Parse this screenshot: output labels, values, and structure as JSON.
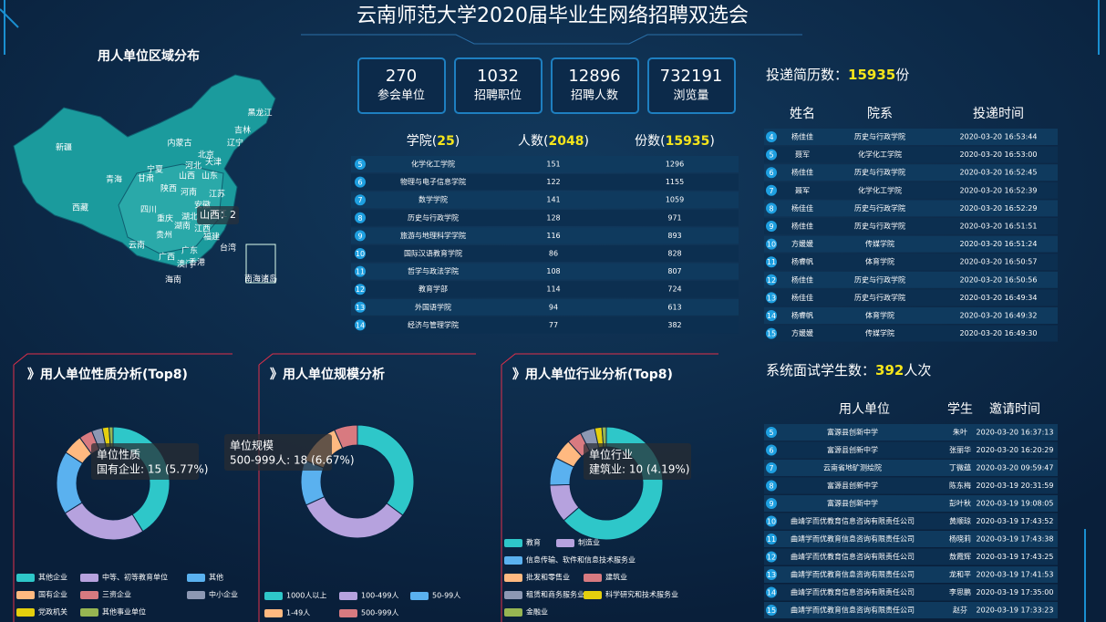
{
  "header": {
    "title": "云南师范大学2020届毕业生网络招聘双选会"
  },
  "map": {
    "title": "用人单位区域分布",
    "labels": [
      "黑龙江",
      "吉林",
      "辽宁",
      "内蒙古",
      "北京",
      "天津",
      "河北",
      "山西",
      "山东",
      "宁夏",
      "甘肃",
      "新疆",
      "青海",
      "西藏",
      "陕西",
      "河南",
      "江苏",
      "安徽",
      "湖北",
      "四川",
      "重庆",
      "湖南",
      "江西",
      "浙江",
      "贵州",
      "福建",
      "云南",
      "广西",
      "广东",
      "台湾",
      "澳门",
      "香港",
      "海南",
      "南海诸岛"
    ],
    "tooltip": "山西：2"
  },
  "stats": [
    {
      "value": "270",
      "label": "参会单位"
    },
    {
      "value": "1032",
      "label": "招聘职位"
    },
    {
      "value": "12896",
      "label": "招聘人数"
    },
    {
      "value": "732191",
      "label": "浏览量"
    }
  ],
  "college_table": {
    "headers": [
      [
        "学院(",
        "25",
        ")"
      ],
      [
        "人数(",
        "2048",
        ")"
      ],
      [
        "份数(",
        "15935",
        ")"
      ]
    ],
    "rows": [
      [
        "5",
        "化学化工学院",
        "151",
        "1296"
      ],
      [
        "6",
        "物理与电子信息学院",
        "122",
        "1155"
      ],
      [
        "7",
        "数学学院",
        "141",
        "1059"
      ],
      [
        "8",
        "历史与行政学院",
        "128",
        "971"
      ],
      [
        "9",
        "旅游与地理科学学院",
        "116",
        "893"
      ],
      [
        "10",
        "国际汉语教育学院",
        "86",
        "828"
      ],
      [
        "11",
        "哲学与政法学院",
        "108",
        "807"
      ],
      [
        "12",
        "教育学部",
        "114",
        "724"
      ],
      [
        "13",
        "外国语学院",
        "94",
        "613"
      ],
      [
        "14",
        "经济与管理学院",
        "77",
        "382"
      ]
    ]
  },
  "resume": {
    "summary": [
      "投递简历数：",
      "15935",
      "份"
    ],
    "headers": [
      "姓名",
      "院系",
      "投递时间"
    ],
    "rows": [
      [
        "4",
        "杨佳佳",
        "历史与行政学院",
        "2020-03-20 16:53:44"
      ],
      [
        "5",
        "聂军",
        "化学化工学院",
        "2020-03-20 16:53:00"
      ],
      [
        "6",
        "杨佳佳",
        "历史与行政学院",
        "2020-03-20 16:52:45"
      ],
      [
        "7",
        "聂军",
        "化学化工学院",
        "2020-03-20 16:52:39"
      ],
      [
        "8",
        "杨佳佳",
        "历史与行政学院",
        "2020-03-20 16:52:29"
      ],
      [
        "9",
        "杨佳佳",
        "历史与行政学院",
        "2020-03-20 16:51:51"
      ],
      [
        "10",
        "方媛媛",
        "传媒学院",
        "2020-03-20 16:51:24"
      ],
      [
        "11",
        "杨睿帆",
        "体育学院",
        "2020-03-20 16:50:57"
      ],
      [
        "12",
        "杨佳佳",
        "历史与行政学院",
        "2020-03-20 16:50:56"
      ],
      [
        "13",
        "杨佳佳",
        "历史与行政学院",
        "2020-03-20 16:49:34"
      ],
      [
        "14",
        "杨睿帆",
        "体育学院",
        "2020-03-20 16:49:32"
      ],
      [
        "15",
        "方媛媛",
        "传媒学院",
        "2020-03-20 16:49:30"
      ]
    ]
  },
  "interview": {
    "summary": [
      "系统面试学生数：",
      "392",
      "人次"
    ],
    "headers": [
      "用人单位",
      "学生",
      "邀请时间"
    ],
    "rows": [
      [
        "5",
        "富源县创新中学",
        "朱叶",
        "2020-03-20 16:37:13"
      ],
      [
        "6",
        "富源县创新中学",
        "张丽华",
        "2020-03-20 16:20:29"
      ],
      [
        "7",
        "云南省地矿测绘院",
        "丁微蕴",
        "2020-03-20 09:59:47"
      ],
      [
        "8",
        "富源县创新中学",
        "陈东梅",
        "2020-03-19 20:31:59"
      ],
      [
        "9",
        "富源县创新中学",
        "彭叶秋",
        "2020-03-19 19:08:05"
      ],
      [
        "10",
        "曲靖学而优教育信息咨询有限责任公司",
        "黄顺琼",
        "2020-03-19 17:43:52"
      ],
      [
        "11",
        "曲靖学而优教育信息咨询有限责任公司",
        "杨晓莉",
        "2020-03-19 17:43:38"
      ],
      [
        "12",
        "曲靖学而优教育信息咨询有限责任公司",
        "敖霞辉",
        "2020-03-19 17:43:25"
      ],
      [
        "13",
        "曲靖学而优教育信息咨询有限责任公司",
        "龙和平",
        "2020-03-19 17:41:53"
      ],
      [
        "14",
        "曲靖学而优教育信息咨询有限责任公司",
        "李思鹏",
        "2020-03-19 17:35:00"
      ],
      [
        "15",
        "曲靖学而优教育信息咨询有限责任公司",
        "赵芬",
        "2020-03-19 17:33:23"
      ]
    ]
  },
  "chart_data": [
    {
      "type": "pie",
      "title": "》用人单位性质分析(Top8)",
      "categories": [
        "其他企业",
        "中等、初等教育单位",
        "其他",
        "国有企业",
        "三资企业",
        "中小企业",
        "党政机关",
        "其他事业单位"
      ],
      "values": [
        107,
        65,
        47,
        15,
        10,
        8,
        5,
        3
      ],
      "colors": [
        "#2ec7c9",
        "#b6a2de",
        "#5ab1ef",
        "#ffb980",
        "#d87a80",
        "#8d98b3",
        "#e5cf0d",
        "#97b552"
      ],
      "tooltip": {
        "title": "单位性质",
        "text": "国有企业: 15 (5.77%)"
      }
    },
    {
      "type": "pie",
      "title": "》用人单位规模分析",
      "categories": [
        "1000人以上",
        "100-499人",
        "50-99人",
        "1-49人",
        "500-999人"
      ],
      "values": [
        95,
        89,
        35,
        33,
        18
      ],
      "colors": [
        "#2ec7c9",
        "#b6a2de",
        "#5ab1ef",
        "#ffb980",
        "#d87a80"
      ],
      "tooltip": {
        "title": "单位规模",
        "text": "500-999人: 18 (6.67%)"
      }
    },
    {
      "type": "pie",
      "title": "》用人单位行业分析(Top8)",
      "categories": [
        "教育",
        "制造业",
        "信息传输、软件和信息技术服务业",
        "批发和零售业",
        "建筑业",
        "租赁和商务服务业",
        "科学研究和技术服务业",
        "金融业"
      ],
      "values": [
        152,
        26,
        19,
        14,
        10,
        10,
        5,
        3
      ],
      "colors": [
        "#2ec7c9",
        "#b6a2de",
        "#5ab1ef",
        "#ffb980",
        "#d87a80",
        "#8d98b3",
        "#e5cf0d",
        "#97b552"
      ],
      "tooltip": {
        "title": "单位行业",
        "text": "建筑业: 10 (4.19%)"
      }
    }
  ]
}
